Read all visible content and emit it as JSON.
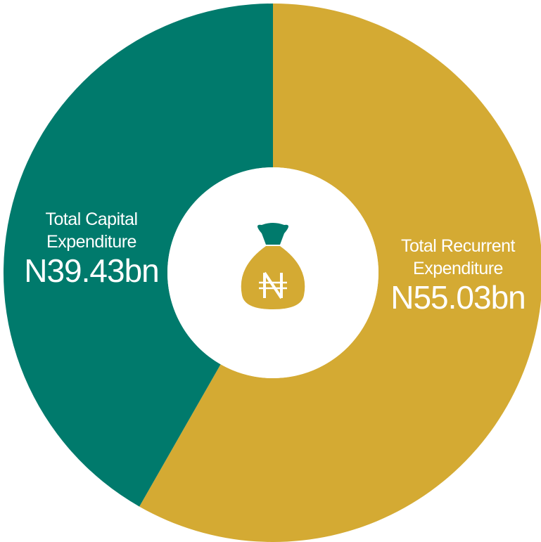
{
  "chart_data": {
    "type": "pie",
    "donut": true,
    "categories": [
      "Total Recurrent Expenditure",
      "Total Capital Expenditure"
    ],
    "values": [
      55.03,
      39.43
    ],
    "value_labels": [
      "N55.03bn",
      "N39.43bn"
    ],
    "colors": [
      "#d4aa33",
      "#007a6c"
    ]
  }
}
